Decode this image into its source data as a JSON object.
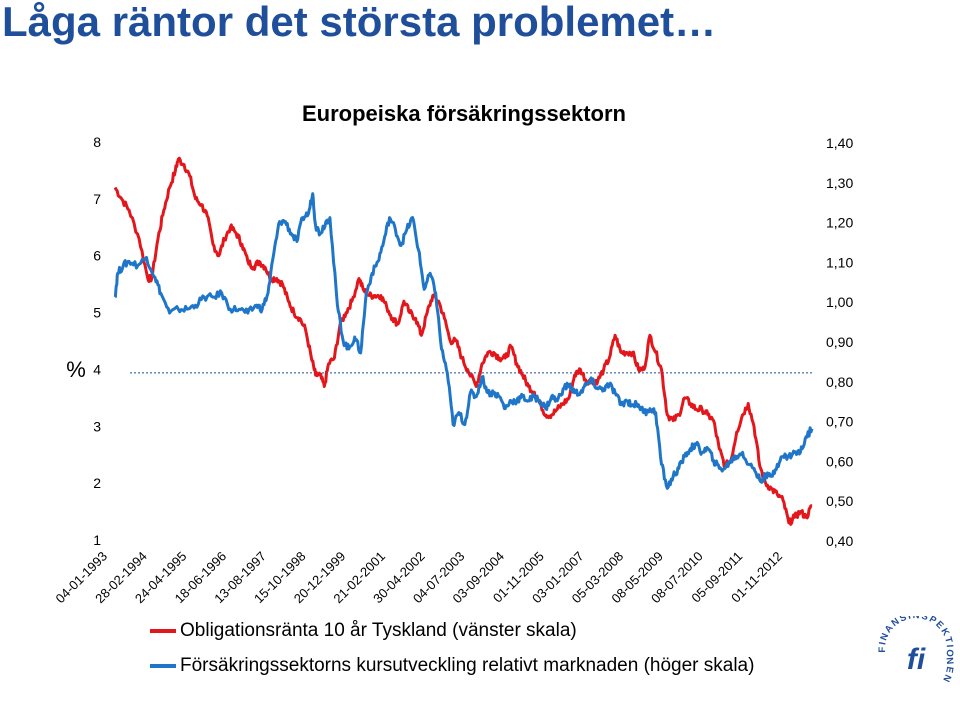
{
  "page": {
    "title": "Låga räntor det största problemet…"
  },
  "logo": {
    "text": "FINANSINSPEKTIONEN",
    "mark": "fi"
  },
  "chart_data": {
    "type": "line",
    "title": "Europeiska försäkringssektorn",
    "ylabel_left": "%",
    "ylim_left": [
      1,
      8
    ],
    "ylim_right": [
      0.4,
      1.4
    ],
    "left_ticks": [
      "1",
      "2",
      "3",
      "4",
      "5",
      "6",
      "7",
      "8"
    ],
    "right_ticks": [
      "0,40",
      "0,50",
      "0,60",
      "0,70",
      "0,80",
      "0,90",
      "1,00",
      "1,10",
      "1,20",
      "1,30",
      "1,40"
    ],
    "x_tick_labels": [
      "04-01-1993",
      "28-02-1994",
      "24-04-1995",
      "18-06-1996",
      "13-08-1997",
      "15-10-1998",
      "20-12-1999",
      "21-02-2001",
      "30-04-2002",
      "04-07-2003",
      "03-09-2004",
      "01-11-2005",
      "03-01-2007",
      "05-03-2008",
      "08-05-2009",
      "08-07-2010",
      "05-09-2011",
      "01-11-2012"
    ],
    "xlim": [
      "1993-01-04",
      "2013-01-31"
    ],
    "reference_line": {
      "axis": "right",
      "value": 0.82,
      "style": "dashed",
      "color": "#1f4e9b"
    },
    "grid": false,
    "legend_position": "bottom",
    "series": [
      {
        "name": "Obligationsränta 10 år Tyskland (vänster skala)",
        "axis": "left",
        "color": "#e3161b",
        "points": [
          [
            "1993-01-04",
            7.2
          ],
          [
            "1993-03-15",
            7.0
          ],
          [
            "1993-06-01",
            6.8
          ],
          [
            "1993-09-15",
            6.3
          ],
          [
            "1993-12-15",
            5.6
          ],
          [
            "1994-01-25",
            5.6
          ],
          [
            "1994-04-01",
            6.3
          ],
          [
            "1994-06-01",
            6.8
          ],
          [
            "1994-08-01",
            7.2
          ],
          [
            "1994-10-01",
            7.5
          ],
          [
            "1994-11-01",
            7.7
          ],
          [
            "1995-01-01",
            7.6
          ],
          [
            "1995-03-01",
            7.4
          ],
          [
            "1995-05-01",
            7.0
          ],
          [
            "1995-07-01",
            6.9
          ],
          [
            "1995-09-01",
            6.7
          ],
          [
            "1995-11-01",
            6.2
          ],
          [
            "1996-01-01",
            6.0
          ],
          [
            "1996-03-01",
            6.3
          ],
          [
            "1996-05-01",
            6.5
          ],
          [
            "1996-07-01",
            6.4
          ],
          [
            "1996-09-01",
            6.2
          ],
          [
            "1996-11-01",
            5.9
          ],
          [
            "1997-01-01",
            5.8
          ],
          [
            "1997-03-01",
            5.9
          ],
          [
            "1997-05-01",
            5.8
          ],
          [
            "1997-07-01",
            5.6
          ],
          [
            "1997-09-01",
            5.6
          ],
          [
            "1997-11-01",
            5.5
          ],
          [
            "1998-01-01",
            5.2
          ],
          [
            "1998-03-01",
            5.0
          ],
          [
            "1998-05-01",
            4.9
          ],
          [
            "1998-07-01",
            4.7
          ],
          [
            "1998-09-01",
            4.2
          ],
          [
            "1998-10-15",
            3.9
          ],
          [
            "1998-12-01",
            3.9
          ],
          [
            "1999-01-15",
            3.7
          ],
          [
            "1999-03-01",
            4.1
          ],
          [
            "1999-05-01",
            4.2
          ],
          [
            "1999-07-01",
            4.8
          ],
          [
            "1999-09-01",
            5.0
          ],
          [
            "1999-11-01",
            5.2
          ],
          [
            "2000-01-15",
            5.6
          ],
          [
            "2000-03-01",
            5.4
          ],
          [
            "2000-05-01",
            5.3
          ],
          [
            "2000-07-01",
            5.3
          ],
          [
            "2000-09-01",
            5.3
          ],
          [
            "2000-11-01",
            5.1
          ],
          [
            "2001-01-01",
            4.9
          ],
          [
            "2001-03-01",
            4.8
          ],
          [
            "2001-05-01",
            5.2
          ],
          [
            "2001-07-01",
            5.0
          ],
          [
            "2001-09-01",
            4.9
          ],
          [
            "2001-11-01",
            4.6
          ],
          [
            "2002-01-01",
            5.0
          ],
          [
            "2002-03-01",
            5.3
          ],
          [
            "2002-05-01",
            5.2
          ],
          [
            "2002-07-01",
            4.9
          ],
          [
            "2002-09-01",
            4.5
          ],
          [
            "2002-11-01",
            4.5
          ],
          [
            "2003-01-01",
            4.2
          ],
          [
            "2003-03-01",
            4.0
          ],
          [
            "2003-06-01",
            3.7
          ],
          [
            "2003-08-01",
            4.1
          ],
          [
            "2003-10-01",
            4.3
          ],
          [
            "2003-12-01",
            4.3
          ],
          [
            "2004-02-01",
            4.2
          ],
          [
            "2004-04-01",
            4.2
          ],
          [
            "2004-06-01",
            4.4
          ],
          [
            "2004-08-01",
            4.1
          ],
          [
            "2004-10-01",
            3.9
          ],
          [
            "2004-12-01",
            3.7
          ],
          [
            "2005-02-01",
            3.6
          ],
          [
            "2005-04-01",
            3.4
          ],
          [
            "2005-06-01",
            3.2
          ],
          [
            "2005-08-01",
            3.2
          ],
          [
            "2005-10-01",
            3.3
          ],
          [
            "2005-12-01",
            3.4
          ],
          [
            "2006-02-01",
            3.5
          ],
          [
            "2006-04-01",
            3.9
          ],
          [
            "2006-06-01",
            4.0
          ],
          [
            "2006-08-01",
            3.8
          ],
          [
            "2006-10-01",
            3.8
          ],
          [
            "2006-12-01",
            3.8
          ],
          [
            "2007-02-01",
            4.0
          ],
          [
            "2007-04-01",
            4.2
          ],
          [
            "2007-06-01",
            4.6
          ],
          [
            "2007-08-01",
            4.3
          ],
          [
            "2007-10-01",
            4.3
          ],
          [
            "2007-12-01",
            4.3
          ],
          [
            "2008-02-01",
            4.0
          ],
          [
            "2008-04-01",
            4.0
          ],
          [
            "2008-06-01",
            4.6
          ],
          [
            "2008-08-01",
            4.3
          ],
          [
            "2008-10-01",
            4.0
          ],
          [
            "2008-12-01",
            3.2
          ],
          [
            "2009-02-01",
            3.1
          ],
          [
            "2009-04-01",
            3.2
          ],
          [
            "2009-06-01",
            3.5
          ],
          [
            "2009-08-01",
            3.4
          ],
          [
            "2009-10-01",
            3.3
          ],
          [
            "2009-12-01",
            3.3
          ],
          [
            "2010-02-01",
            3.2
          ],
          [
            "2010-04-01",
            3.1
          ],
          [
            "2010-06-01",
            2.6
          ],
          [
            "2010-08-01",
            2.3
          ],
          [
            "2010-10-01",
            2.4
          ],
          [
            "2010-12-01",
            2.9
          ],
          [
            "2011-02-01",
            3.2
          ],
          [
            "2011-04-01",
            3.4
          ],
          [
            "2011-06-01",
            3.0
          ],
          [
            "2011-08-01",
            2.3
          ],
          [
            "2011-10-01",
            2.0
          ],
          [
            "2011-12-01",
            1.9
          ],
          [
            "2012-02-01",
            1.8
          ],
          [
            "2012-04-01",
            1.7
          ],
          [
            "2012-06-01",
            1.3
          ],
          [
            "2012-08-01",
            1.4
          ],
          [
            "2012-10-01",
            1.5
          ],
          [
            "2012-12-01",
            1.4
          ],
          [
            "2013-01-31",
            1.6
          ]
        ]
      },
      {
        "name": "Försäkringssektorns kursutveckling relativt marknaden (höger skala)",
        "axis": "right",
        "color": "#1f76c8",
        "points": [
          [
            "1993-01-04",
            1.01
          ],
          [
            "1993-02-01",
            1.07
          ],
          [
            "1993-04-01",
            1.09
          ],
          [
            "1993-06-01",
            1.1
          ],
          [
            "1993-09-01",
            1.09
          ],
          [
            "1993-12-01",
            1.11
          ],
          [
            "1994-03-01",
            1.06
          ],
          [
            "1994-05-01",
            1.02
          ],
          [
            "1994-08-01",
            0.97
          ],
          [
            "1994-11-01",
            0.98
          ],
          [
            "1995-02-01",
            0.98
          ],
          [
            "1995-05-01",
            0.99
          ],
          [
            "1995-08-01",
            1.01
          ],
          [
            "1995-11-01",
            1.01
          ],
          [
            "1996-02-01",
            1.02
          ],
          [
            "1996-05-01",
            0.98
          ],
          [
            "1996-08-01",
            0.98
          ],
          [
            "1996-11-01",
            0.97
          ],
          [
            "1997-02-01",
            0.99
          ],
          [
            "1997-04-01",
            0.98
          ],
          [
            "1997-06-01",
            1.02
          ],
          [
            "1997-08-01",
            1.12
          ],
          [
            "1997-10-01",
            1.2
          ],
          [
            "1997-12-01",
            1.2
          ],
          [
            "1998-02-01",
            1.17
          ],
          [
            "1998-04-01",
            1.15
          ],
          [
            "1998-06-01",
            1.21
          ],
          [
            "1998-08-01",
            1.22
          ],
          [
            "1998-09-15",
            1.27
          ],
          [
            "1998-10-15",
            1.19
          ],
          [
            "1998-12-01",
            1.17
          ],
          [
            "1999-02-01",
            1.2
          ],
          [
            "1999-03-15",
            1.21
          ],
          [
            "1999-06-01",
            0.99
          ],
          [
            "1999-08-01",
            0.9
          ],
          [
            "1999-10-01",
            0.88
          ],
          [
            "1999-12-01",
            0.91
          ],
          [
            "2000-02-01",
            0.87
          ],
          [
            "2000-04-01",
            1.02
          ],
          [
            "2000-06-01",
            1.07
          ],
          [
            "2000-08-01",
            1.1
          ],
          [
            "2000-10-01",
            1.15
          ],
          [
            "2000-12-01",
            1.21
          ],
          [
            "2001-02-01",
            1.18
          ],
          [
            "2001-04-01",
            1.14
          ],
          [
            "2001-06-01",
            1.18
          ],
          [
            "2001-08-01",
            1.21
          ],
          [
            "2001-10-01",
            1.13
          ],
          [
            "2001-12-01",
            1.03
          ],
          [
            "2002-02-01",
            1.07
          ],
          [
            "2002-04-01",
            1.02
          ],
          [
            "2002-06-01",
            0.88
          ],
          [
            "2002-08-01",
            0.82
          ],
          [
            "2002-10-01",
            0.69
          ],
          [
            "2002-12-01",
            0.72
          ],
          [
            "2003-02-01",
            0.69
          ],
          [
            "2003-04-01",
            0.77
          ],
          [
            "2003-06-01",
            0.76
          ],
          [
            "2003-08-01",
            0.81
          ],
          [
            "2003-10-01",
            0.77
          ],
          [
            "2003-12-01",
            0.77
          ],
          [
            "2004-02-01",
            0.76
          ],
          [
            "2004-04-01",
            0.73
          ],
          [
            "2004-06-01",
            0.75
          ],
          [
            "2004-08-01",
            0.75
          ],
          [
            "2004-10-01",
            0.76
          ],
          [
            "2004-12-01",
            0.75
          ],
          [
            "2005-02-01",
            0.76
          ],
          [
            "2005-04-01",
            0.75
          ],
          [
            "2005-06-01",
            0.73
          ],
          [
            "2005-08-01",
            0.76
          ],
          [
            "2005-10-01",
            0.75
          ],
          [
            "2005-12-01",
            0.78
          ],
          [
            "2006-02-01",
            0.79
          ],
          [
            "2006-04-01",
            0.77
          ],
          [
            "2006-06-01",
            0.77
          ],
          [
            "2006-08-01",
            0.79
          ],
          [
            "2006-10-01",
            0.8
          ],
          [
            "2006-12-01",
            0.78
          ],
          [
            "2007-02-01",
            0.78
          ],
          [
            "2007-04-01",
            0.79
          ],
          [
            "2007-06-01",
            0.77
          ],
          [
            "2007-08-01",
            0.74
          ],
          [
            "2007-10-01",
            0.75
          ],
          [
            "2007-12-01",
            0.74
          ],
          [
            "2008-02-01",
            0.74
          ],
          [
            "2008-04-01",
            0.72
          ],
          [
            "2008-06-01",
            0.73
          ],
          [
            "2008-08-01",
            0.72
          ],
          [
            "2008-10-01",
            0.59
          ],
          [
            "2008-12-01",
            0.53
          ],
          [
            "2009-02-01",
            0.56
          ],
          [
            "2009-04-01",
            0.58
          ],
          [
            "2009-06-01",
            0.61
          ],
          [
            "2009-08-01",
            0.63
          ],
          [
            "2009-10-01",
            0.64
          ],
          [
            "2009-12-01",
            0.62
          ],
          [
            "2010-02-01",
            0.63
          ],
          [
            "2010-04-01",
            0.6
          ],
          [
            "2010-06-01",
            0.58
          ],
          [
            "2010-08-01",
            0.58
          ],
          [
            "2010-10-01",
            0.6
          ],
          [
            "2010-12-01",
            0.61
          ],
          [
            "2011-02-01",
            0.62
          ],
          [
            "2011-04-01",
            0.59
          ],
          [
            "2011-06-01",
            0.58
          ],
          [
            "2011-08-01",
            0.55
          ],
          [
            "2011-10-01",
            0.56
          ],
          [
            "2011-12-01",
            0.56
          ],
          [
            "2012-02-01",
            0.59
          ],
          [
            "2012-04-01",
            0.61
          ],
          [
            "2012-06-01",
            0.61
          ],
          [
            "2012-08-01",
            0.62
          ],
          [
            "2012-10-01",
            0.62
          ],
          [
            "2012-12-01",
            0.66
          ],
          [
            "2013-01-31",
            0.68
          ]
        ]
      }
    ]
  }
}
